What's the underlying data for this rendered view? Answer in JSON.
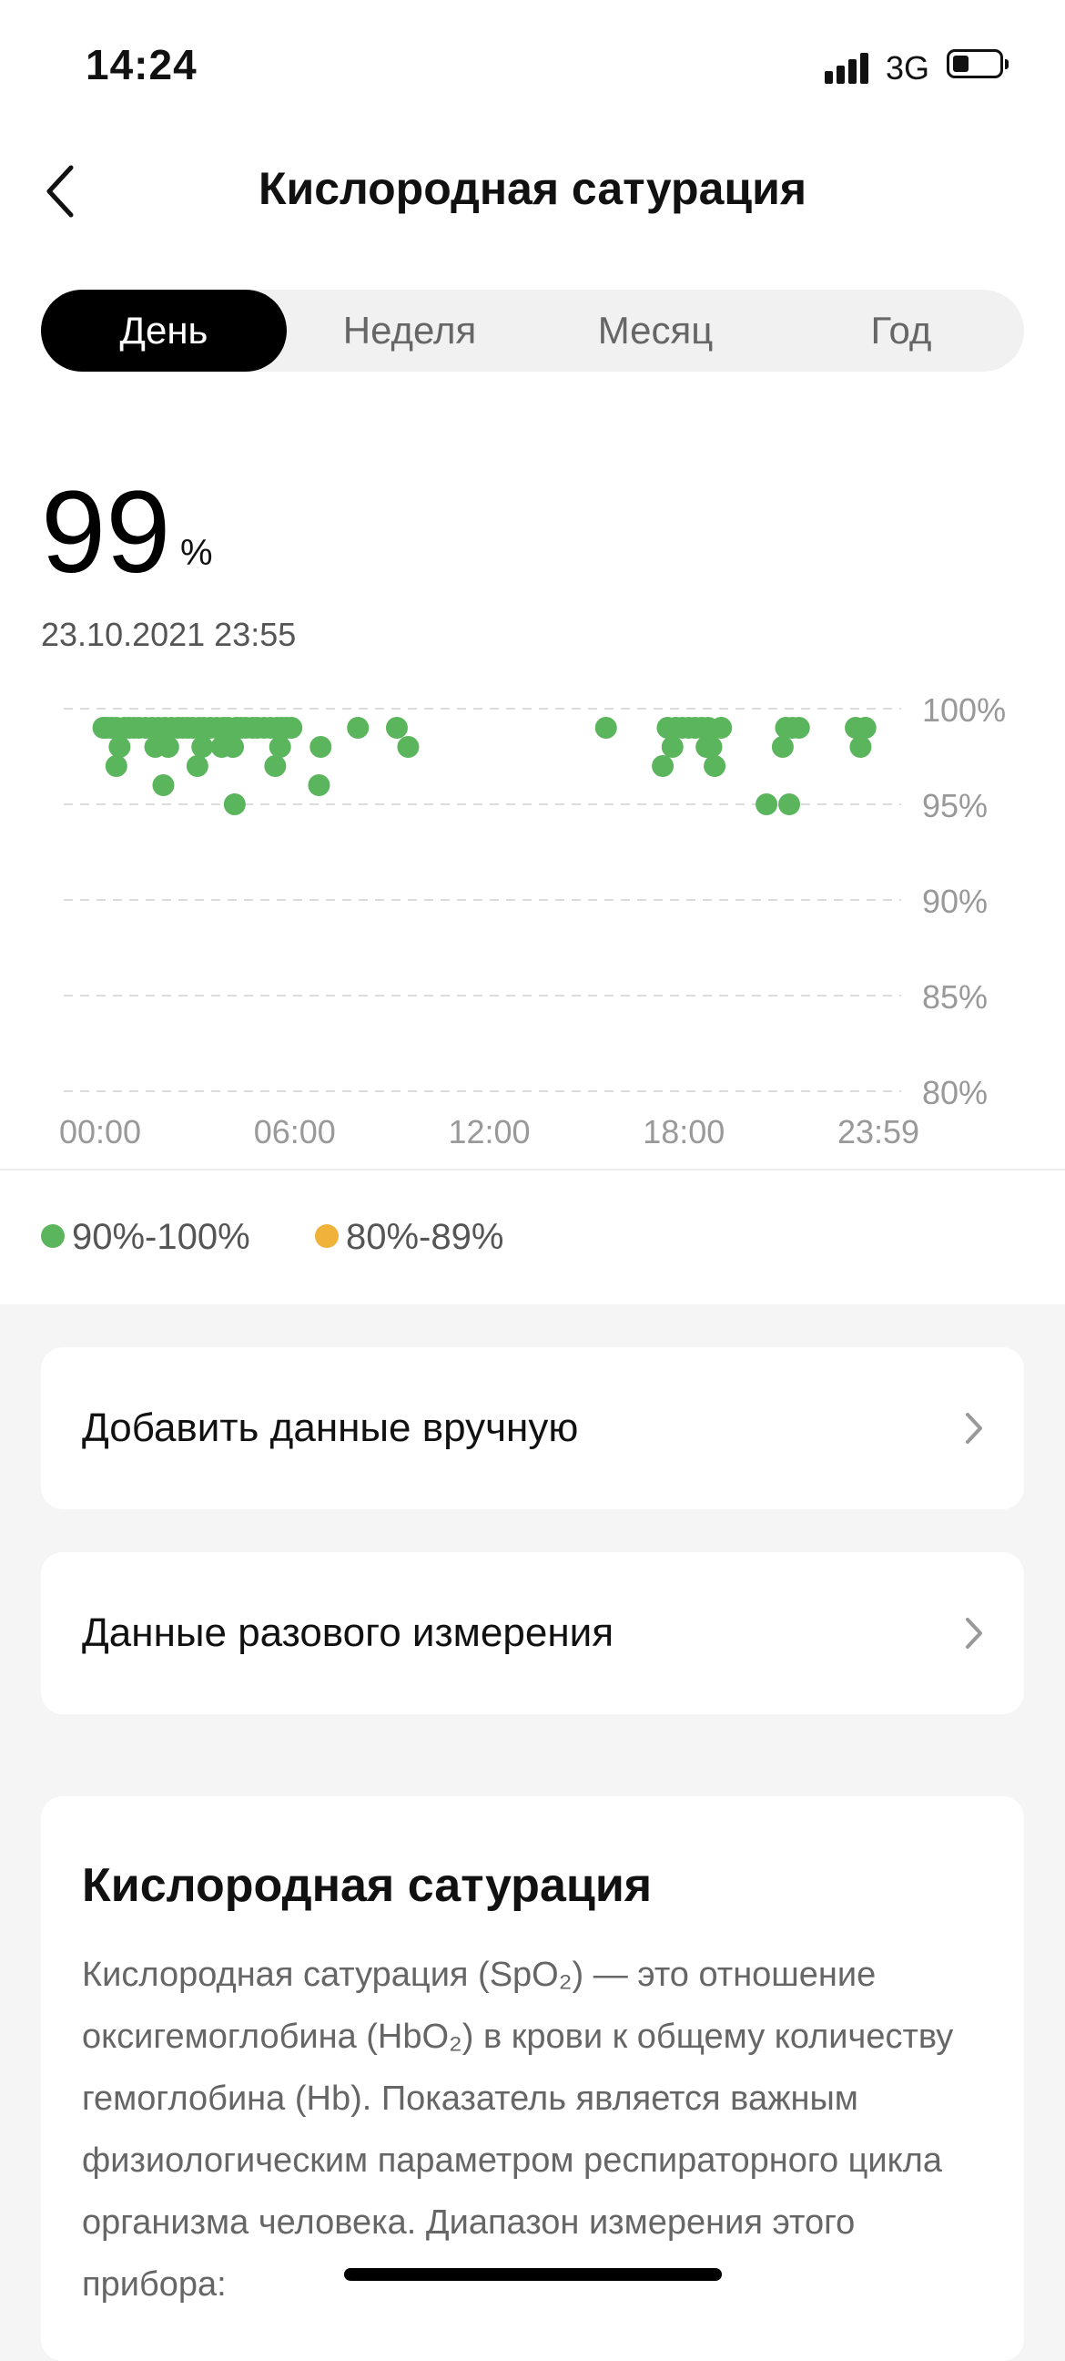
{
  "status_bar": {
    "time": "14:24",
    "network": "3G",
    "battery_level": 0.35,
    "icons": [
      "signal-icon",
      "battery-icon"
    ]
  },
  "nav": {
    "title": "Кислородная сатурация",
    "back_icon": "chevron-left-icon"
  },
  "tabs": [
    {
      "label": "День",
      "active": true
    },
    {
      "label": "Неделя",
      "active": false
    },
    {
      "label": "Месяц",
      "active": false
    },
    {
      "label": "Год",
      "active": false
    }
  ],
  "summary": {
    "value": "99",
    "unit": "%",
    "datetime": "23.10.2021 23:55"
  },
  "colors": {
    "normal": "#5bb55d",
    "low": "#f0b23a",
    "tab_active_bg": "#000000"
  },
  "chart_data": {
    "type": "scatter",
    "title": "",
    "xlabel": "",
    "ylabel": "",
    "x_ticks": [
      "00:00",
      "06:00",
      "12:00",
      "18:00",
      "23:59"
    ],
    "y_ticks": [
      "100%",
      "95%",
      "90%",
      "85%",
      "80%"
    ],
    "xlim": [
      0,
      24
    ],
    "ylim": [
      80,
      100
    ],
    "grid": true,
    "series": [
      {
        "name": "90%-100%",
        "points": [
          [
            0.1,
            99
          ],
          [
            0.2,
            99
          ],
          [
            0.35,
            99
          ],
          [
            0.5,
            99
          ],
          [
            0.5,
            97
          ],
          [
            0.6,
            98
          ],
          [
            0.75,
            99
          ],
          [
            0.9,
            99
          ],
          [
            1.05,
            99
          ],
          [
            1.2,
            99
          ],
          [
            1.4,
            99
          ],
          [
            1.6,
            99
          ],
          [
            1.7,
            98
          ],
          [
            1.8,
            99
          ],
          [
            1.95,
            96
          ],
          [
            2.0,
            99
          ],
          [
            2.1,
            98
          ],
          [
            2.2,
            99
          ],
          [
            2.4,
            99
          ],
          [
            2.55,
            99
          ],
          [
            2.7,
            99
          ],
          [
            2.85,
            99
          ],
          [
            3.0,
            97
          ],
          [
            3.05,
            99
          ],
          [
            3.15,
            98
          ],
          [
            3.2,
            99
          ],
          [
            3.4,
            99
          ],
          [
            3.6,
            99
          ],
          [
            3.75,
            98
          ],
          [
            3.8,
            99
          ],
          [
            3.95,
            99
          ],
          [
            4.1,
            98
          ],
          [
            4.15,
            95
          ],
          [
            4.2,
            99
          ],
          [
            4.35,
            99
          ],
          [
            4.5,
            99
          ],
          [
            4.7,
            99
          ],
          [
            4.85,
            99
          ],
          [
            5.05,
            99
          ],
          [
            5.25,
            99
          ],
          [
            5.4,
            97
          ],
          [
            5.45,
            99
          ],
          [
            5.55,
            98
          ],
          [
            5.6,
            99
          ],
          [
            5.75,
            99
          ],
          [
            5.9,
            99
          ],
          [
            6.75,
            96
          ],
          [
            6.8,
            98
          ],
          [
            7.95,
            99
          ],
          [
            9.15,
            99
          ],
          [
            9.5,
            98
          ],
          [
            15.6,
            99
          ],
          [
            17.35,
            97
          ],
          [
            17.5,
            99
          ],
          [
            17.65,
            98
          ],
          [
            17.75,
            99
          ],
          [
            17.95,
            99
          ],
          [
            18.15,
            99
          ],
          [
            18.35,
            99
          ],
          [
            18.55,
            99
          ],
          [
            18.7,
            98
          ],
          [
            18.75,
            99
          ],
          [
            18.85,
            98
          ],
          [
            18.95,
            97
          ],
          [
            19.15,
            99
          ],
          [
            20.55,
            95
          ],
          [
            21.05,
            98
          ],
          [
            21.15,
            99
          ],
          [
            21.25,
            95
          ],
          [
            21.35,
            99
          ],
          [
            21.55,
            99
          ],
          [
            23.3,
            99
          ],
          [
            23.45,
            98
          ],
          [
            23.6,
            99
          ]
        ]
      },
      {
        "name": "80%-89%",
        "points": []
      }
    ],
    "legend": [
      {
        "label": "90%-100%",
        "color": "#5bb55d"
      },
      {
        "label": "80%-89%",
        "color": "#f0b23a"
      }
    ]
  },
  "actions": [
    {
      "label": "Добавить данные вручную",
      "icon": "chevron-right-icon"
    },
    {
      "label": "Данные разового измерения",
      "icon": "chevron-right-icon"
    }
  ],
  "info": {
    "title": "Кислородная сатурация",
    "text": "Кислородная сатурация (SpO₂) — это отношение оксигемоглобина (HbO₂) в крови к общему количеству гемоглобина (Hb). Показатель является важным физиологическим параметром респираторного цикла организма человека. Диапазон измерения этого прибора:"
  }
}
